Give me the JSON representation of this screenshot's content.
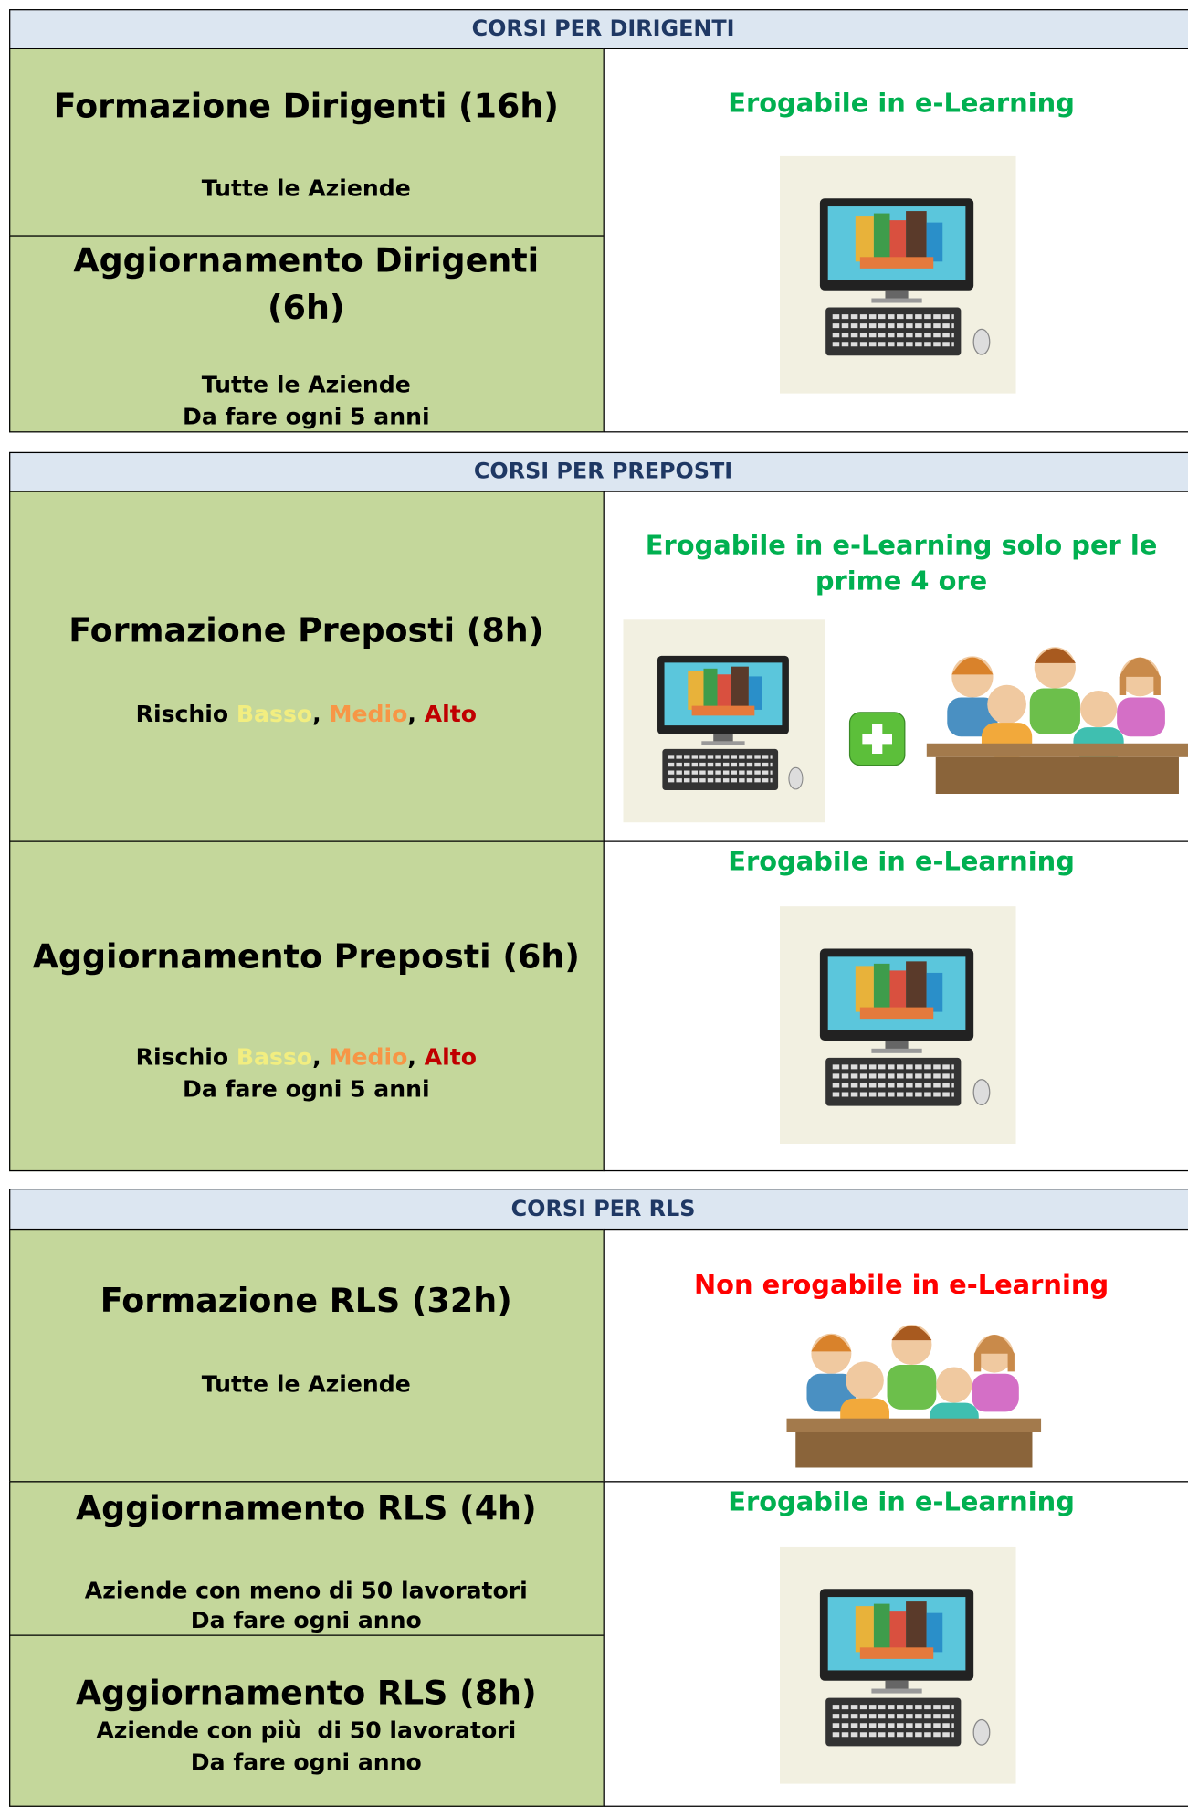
{
  "sections": [
    {
      "header": "CORSI PER DIRIGENTI",
      "courses": [
        {
          "title": "Formazione Dirigenti (16h)",
          "lines": [
            "Tutte le Aziende"
          ]
        },
        {
          "title": "Aggiornamento Dirigenti (6h)",
          "lines": [
            "Tutte le Aziende",
            "Da fare ogni 5 anni"
          ]
        }
      ],
      "delivery": [
        {
          "note": "Erogabile in e-Learning"
        }
      ]
    },
    {
      "header": "CORSI PER PREPOSTI",
      "courses": [
        {
          "title": "Formazione Preposti (8h)",
          "risk": {
            "label": "Rischio",
            "levels": [
              "Basso",
              "Medio",
              "Alto"
            ],
            "separator": ","
          }
        },
        {
          "title": "Aggiornamento Preposti (6h)",
          "risk": {
            "label": "Rischio",
            "levels": [
              "Basso",
              "Medio",
              "Alto"
            ],
            "separator": ","
          },
          "lines": [
            "Da fare ogni 5 anni"
          ]
        }
      ],
      "delivery": [
        {
          "note": "Erogabile in e-Learning solo per le prime 4 ore"
        },
        {
          "note": "Erogabile in e-Learning"
        }
      ]
    },
    {
      "header": "CORSI PER RLS",
      "courses": [
        {
          "title": "Formazione RLS (32h)",
          "lines": [
            "Tutte le Aziende"
          ]
        },
        {
          "title": "Aggiornamento RLS (4h)",
          "lines": [
            "Aziende con meno di 50 lavoratori",
            "Da fare ogni anno"
          ]
        },
        {
          "title": "Aggiornamento RLS (8h)",
          "lines": [
            "Aziende con più  di 50 lavoratori",
            "Da fare ogni anno"
          ]
        }
      ],
      "delivery": [
        {
          "note": "Non erogabile in e-Learning"
        },
        {
          "note": "Erogabile in e-Learning"
        }
      ]
    }
  ]
}
